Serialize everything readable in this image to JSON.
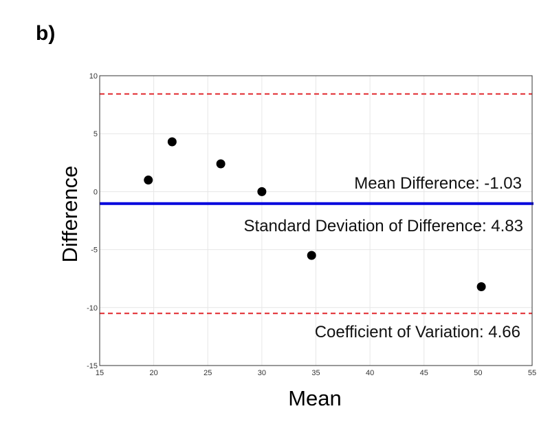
{
  "panel_label": "b)",
  "chart_data": {
    "type": "scatter",
    "title": "",
    "xlabel": "Mean",
    "ylabel": "Difference",
    "xlim": [
      15,
      55
    ],
    "ylim": [
      -15,
      10
    ],
    "x_ticks": [
      15,
      20,
      25,
      30,
      35,
      40,
      45,
      50,
      55
    ],
    "y_ticks": [
      10,
      5,
      0,
      -5,
      -10,
      -15
    ],
    "grid": true,
    "points": [
      {
        "x": 19.5,
        "y": 1.0
      },
      {
        "x": 21.7,
        "y": 4.3
      },
      {
        "x": 26.2,
        "y": 2.4
      },
      {
        "x": 30.0,
        "y": 0.0
      },
      {
        "x": 34.6,
        "y": -5.5
      },
      {
        "x": 50.3,
        "y": -8.2
      }
    ],
    "mean_line": -1.03,
    "upper_limit": 8.43,
    "lower_limit": -10.5,
    "annotations": {
      "mean_difference": "Mean Difference: -1.03",
      "std_difference": "Standard Deviation of Difference: 4.83",
      "coef_variation": "Coefficient of Variation: 4.66"
    },
    "colors": {
      "points": "#000000",
      "mean_line": "#0000dd",
      "limit_lines": "#e0262b",
      "grid": "#e6e6e6",
      "frame": "#333333"
    }
  }
}
